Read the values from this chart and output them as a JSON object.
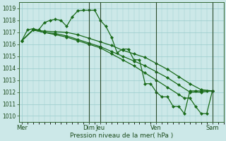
{
  "xlabel": "Pression niveau de la mer( hPa )",
  "background_color": "#cce8e8",
  "grid_color": "#99cccc",
  "line_color": "#1a6b1a",
  "vline_color": "#2a4a2a",
  "ylim": [
    1009.5,
    1019.5
  ],
  "yticks": [
    1010,
    1011,
    1012,
    1013,
    1014,
    1015,
    1016,
    1017,
    1018,
    1019
  ],
  "day_labels": [
    "Mer",
    "Dim",
    "Jeu",
    "Ven",
    "Sam"
  ],
  "day_positions": [
    0,
    72,
    84,
    144,
    204
  ],
  "xlim": [
    -3,
    216
  ],
  "series": [
    {
      "x": [
        0,
        6,
        12,
        18,
        24,
        30,
        36,
        42,
        48,
        54,
        60,
        66,
        72,
        78,
        84,
        90,
        96,
        102,
        108,
        114,
        120,
        126,
        132,
        138,
        144,
        150,
        156,
        162,
        168,
        174,
        180,
        186,
        192,
        198,
        204
      ],
      "y": [
        1016.3,
        1017.2,
        1017.3,
        1017.2,
        1017.8,
        1018.0,
        1018.1,
        1018.0,
        1017.5,
        1018.3,
        1018.8,
        1018.85,
        1018.85,
        1018.85,
        1018.0,
        1017.5,
        1016.6,
        1015.3,
        1015.6,
        1015.6,
        1014.7,
        1014.7,
        1012.7,
        1012.7,
        1012.0,
        1011.6,
        1011.6,
        1010.8,
        1010.8,
        1010.2,
        1012.1,
        1012.1,
        1012.1,
        1012.1,
        1012.1
      ]
    },
    {
      "x": [
        0,
        12,
        24,
        36,
        48,
        60,
        72,
        84,
        96,
        108,
        120,
        132,
        144,
        156,
        168,
        180,
        192,
        204
      ],
      "y": [
        1016.3,
        1017.2,
        1017.1,
        1017.05,
        1017.0,
        1016.8,
        1016.5,
        1016.2,
        1015.9,
        1015.5,
        1015.2,
        1014.9,
        1014.4,
        1013.9,
        1013.3,
        1012.7,
        1012.2,
        1012.1
      ]
    },
    {
      "x": [
        0,
        12,
        24,
        36,
        48,
        60,
        72,
        84,
        96,
        108,
        120,
        132,
        144,
        156,
        168,
        180,
        192,
        204
      ],
      "y": [
        1016.3,
        1017.2,
        1017.0,
        1016.9,
        1016.7,
        1016.4,
        1016.1,
        1015.8,
        1015.4,
        1015.0,
        1014.6,
        1014.2,
        1013.7,
        1013.2,
        1012.6,
        1012.0,
        1012.0,
        1012.1
      ]
    },
    {
      "x": [
        0,
        12,
        24,
        36,
        48,
        60,
        72,
        84,
        96,
        108,
        120,
        132,
        144,
        156,
        168,
        174,
        180,
        186,
        192,
        198,
        204
      ],
      "y": [
        1016.3,
        1017.2,
        1017.0,
        1016.8,
        1016.6,
        1016.3,
        1016.0,
        1015.7,
        1015.2,
        1014.7,
        1014.2,
        1013.6,
        1013.0,
        1012.4,
        1011.8,
        1011.5,
        1011.5,
        1010.8,
        1010.2,
        1010.2,
        1012.1
      ]
    }
  ],
  "vline_positions": [
    72,
    84,
    144,
    204
  ]
}
